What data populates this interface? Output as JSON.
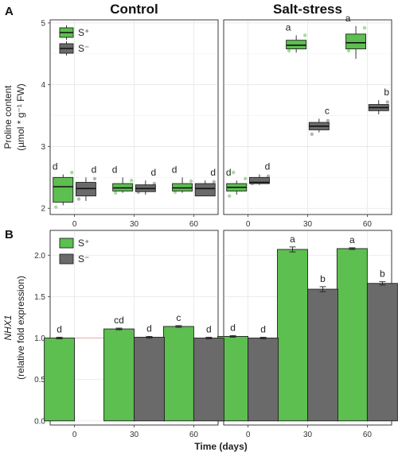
{
  "figure": {
    "x_axis_title": "Time (days)"
  },
  "colors": {
    "S_plus": "#5cbf4f",
    "S_minus": "#6a6a6a",
    "S_plus_points": "#a8d9a0",
    "S_minus_points": "#b5b5b5",
    "reference_line": "#e8a0a0"
  },
  "chart_data": [
    {
      "panel_letter": "A",
      "type": "box",
      "facets": [
        "Control",
        "Salt-stress"
      ],
      "categories": [
        "0",
        "30",
        "60"
      ],
      "ylabel": "Proline content",
      "ylabel_unit": "(µmol * g⁻¹ FW)",
      "ylim": [
        1.9,
        5.05
      ],
      "yticks": [
        2,
        3,
        4,
        5
      ],
      "grid": true,
      "legend_placement": "top-left",
      "series": [
        {
          "name": "S⁺",
          "color": "#5cbf4f",
          "boxes": [
            [
              {
                "min": 2.05,
                "q1": 2.1,
                "median": 2.35,
                "q3": 2.5,
                "max": 2.55,
                "label": "d",
                "points": [
                  2.02,
                  2.4,
                  2.58
                ]
              },
              {
                "min": 2.25,
                "q1": 2.28,
                "median": 2.33,
                "q3": 2.4,
                "max": 2.5,
                "label": "d",
                "points": [
                  2.25,
                  2.32,
                  2.45
                ]
              },
              {
                "min": 2.25,
                "q1": 2.28,
                "median": 2.33,
                "q3": 2.4,
                "max": 2.5,
                "label": "d",
                "points": [
                  2.26,
                  2.34,
                  2.44
                ]
              }
            ],
            [
              {
                "min": 2.22,
                "q1": 2.28,
                "median": 2.34,
                "q3": 2.4,
                "max": 2.45,
                "label": "d",
                "points": [
                  2.2,
                  2.3,
                  2.48,
                  2.58
                ]
              },
              {
                "min": 4.52,
                "q1": 4.58,
                "median": 4.64,
                "q3": 4.72,
                "max": 4.8,
                "label": "a",
                "points": [
                  4.55,
                  4.62,
                  4.8
                ]
              },
              {
                "min": 4.42,
                "q1": 4.58,
                "median": 4.68,
                "q3": 4.82,
                "max": 4.95,
                "label": "a",
                "points": [
                  4.55,
                  4.7,
                  4.92
                ]
              }
            ]
          ]
        },
        {
          "name": "S⁻",
          "color": "#6a6a6a",
          "boxes": [
            [
              {
                "min": 2.12,
                "q1": 2.2,
                "median": 2.32,
                "q3": 2.42,
                "max": 2.5,
                "label": "d",
                "points": [
                  2.15,
                  2.28,
                  2.48
                ]
              },
              {
                "min": 2.22,
                "q1": 2.27,
                "median": 2.32,
                "q3": 2.38,
                "max": 2.45,
                "label": "d",
                "points": [
                  2.26,
                  2.33,
                  2.4
                ]
              },
              {
                "min": 2.2,
                "q1": 2.2,
                "median": 2.32,
                "q3": 2.4,
                "max": 2.45,
                "label": "d",
                "points": [
                  2.22,
                  2.3,
                  2.43
                ]
              }
            ],
            [
              {
                "min": 2.38,
                "q1": 2.4,
                "median": 2.42,
                "q3": 2.5,
                "max": 2.55,
                "label": "d",
                "points": [
                  2.4,
                  2.46,
                  2.52
                ]
              },
              {
                "min": 3.23,
                "q1": 3.27,
                "median": 3.33,
                "q3": 3.39,
                "max": 3.45,
                "label": "c",
                "points": [
                  3.2,
                  3.3,
                  3.42
                ]
              },
              {
                "min": 3.52,
                "q1": 3.58,
                "median": 3.63,
                "q3": 3.68,
                "max": 3.75,
                "label": "b",
                "points": [
                  3.6,
                  3.65,
                  3.72
                ]
              }
            ]
          ]
        }
      ]
    },
    {
      "panel_letter": "B",
      "type": "bar",
      "facets": [
        "",
        ""
      ],
      "categories": [
        "0",
        "30",
        "60"
      ],
      "ylabel": "NHX1",
      "ylabel_unit": "(relative fold expression)",
      "ylim": [
        -0.05,
        2.3
      ],
      "yticks": [
        0.0,
        0.5,
        1.0,
        1.5,
        2.0
      ],
      "ytick_labels": [
        "0.0",
        "0.5",
        "1.0",
        "1.5",
        "2.0"
      ],
      "reference_line": 1.0,
      "grid": true,
      "legend_placement": "top-left",
      "series": [
        {
          "name": "S⁺",
          "color": "#5cbf4f",
          "values": [
            [
              1.0,
              1.11,
              1.14
            ],
            [
              1.02,
              2.07,
              2.08
            ]
          ],
          "errors": [
            [
              0.01,
              0.01,
              0.01
            ],
            [
              0.01,
              0.03,
              0.01
            ]
          ],
          "labels": [
            [
              "d",
              "cd",
              "c"
            ],
            [
              "d",
              "a",
              "a"
            ]
          ]
        },
        {
          "name": "S⁻",
          "color": "#6a6a6a",
          "values": [
            [
              0.0,
              1.01,
              1.0
            ],
            [
              1.0,
              1.59,
              1.66
            ]
          ],
          "errors": [
            [
              0.0,
              0.01,
              0.01
            ],
            [
              0.01,
              0.03,
              0.02
            ]
          ],
          "labels": [
            [
              "",
              "d",
              "d"
            ],
            [
              "d",
              "b",
              "b"
            ]
          ]
        }
      ]
    }
  ]
}
